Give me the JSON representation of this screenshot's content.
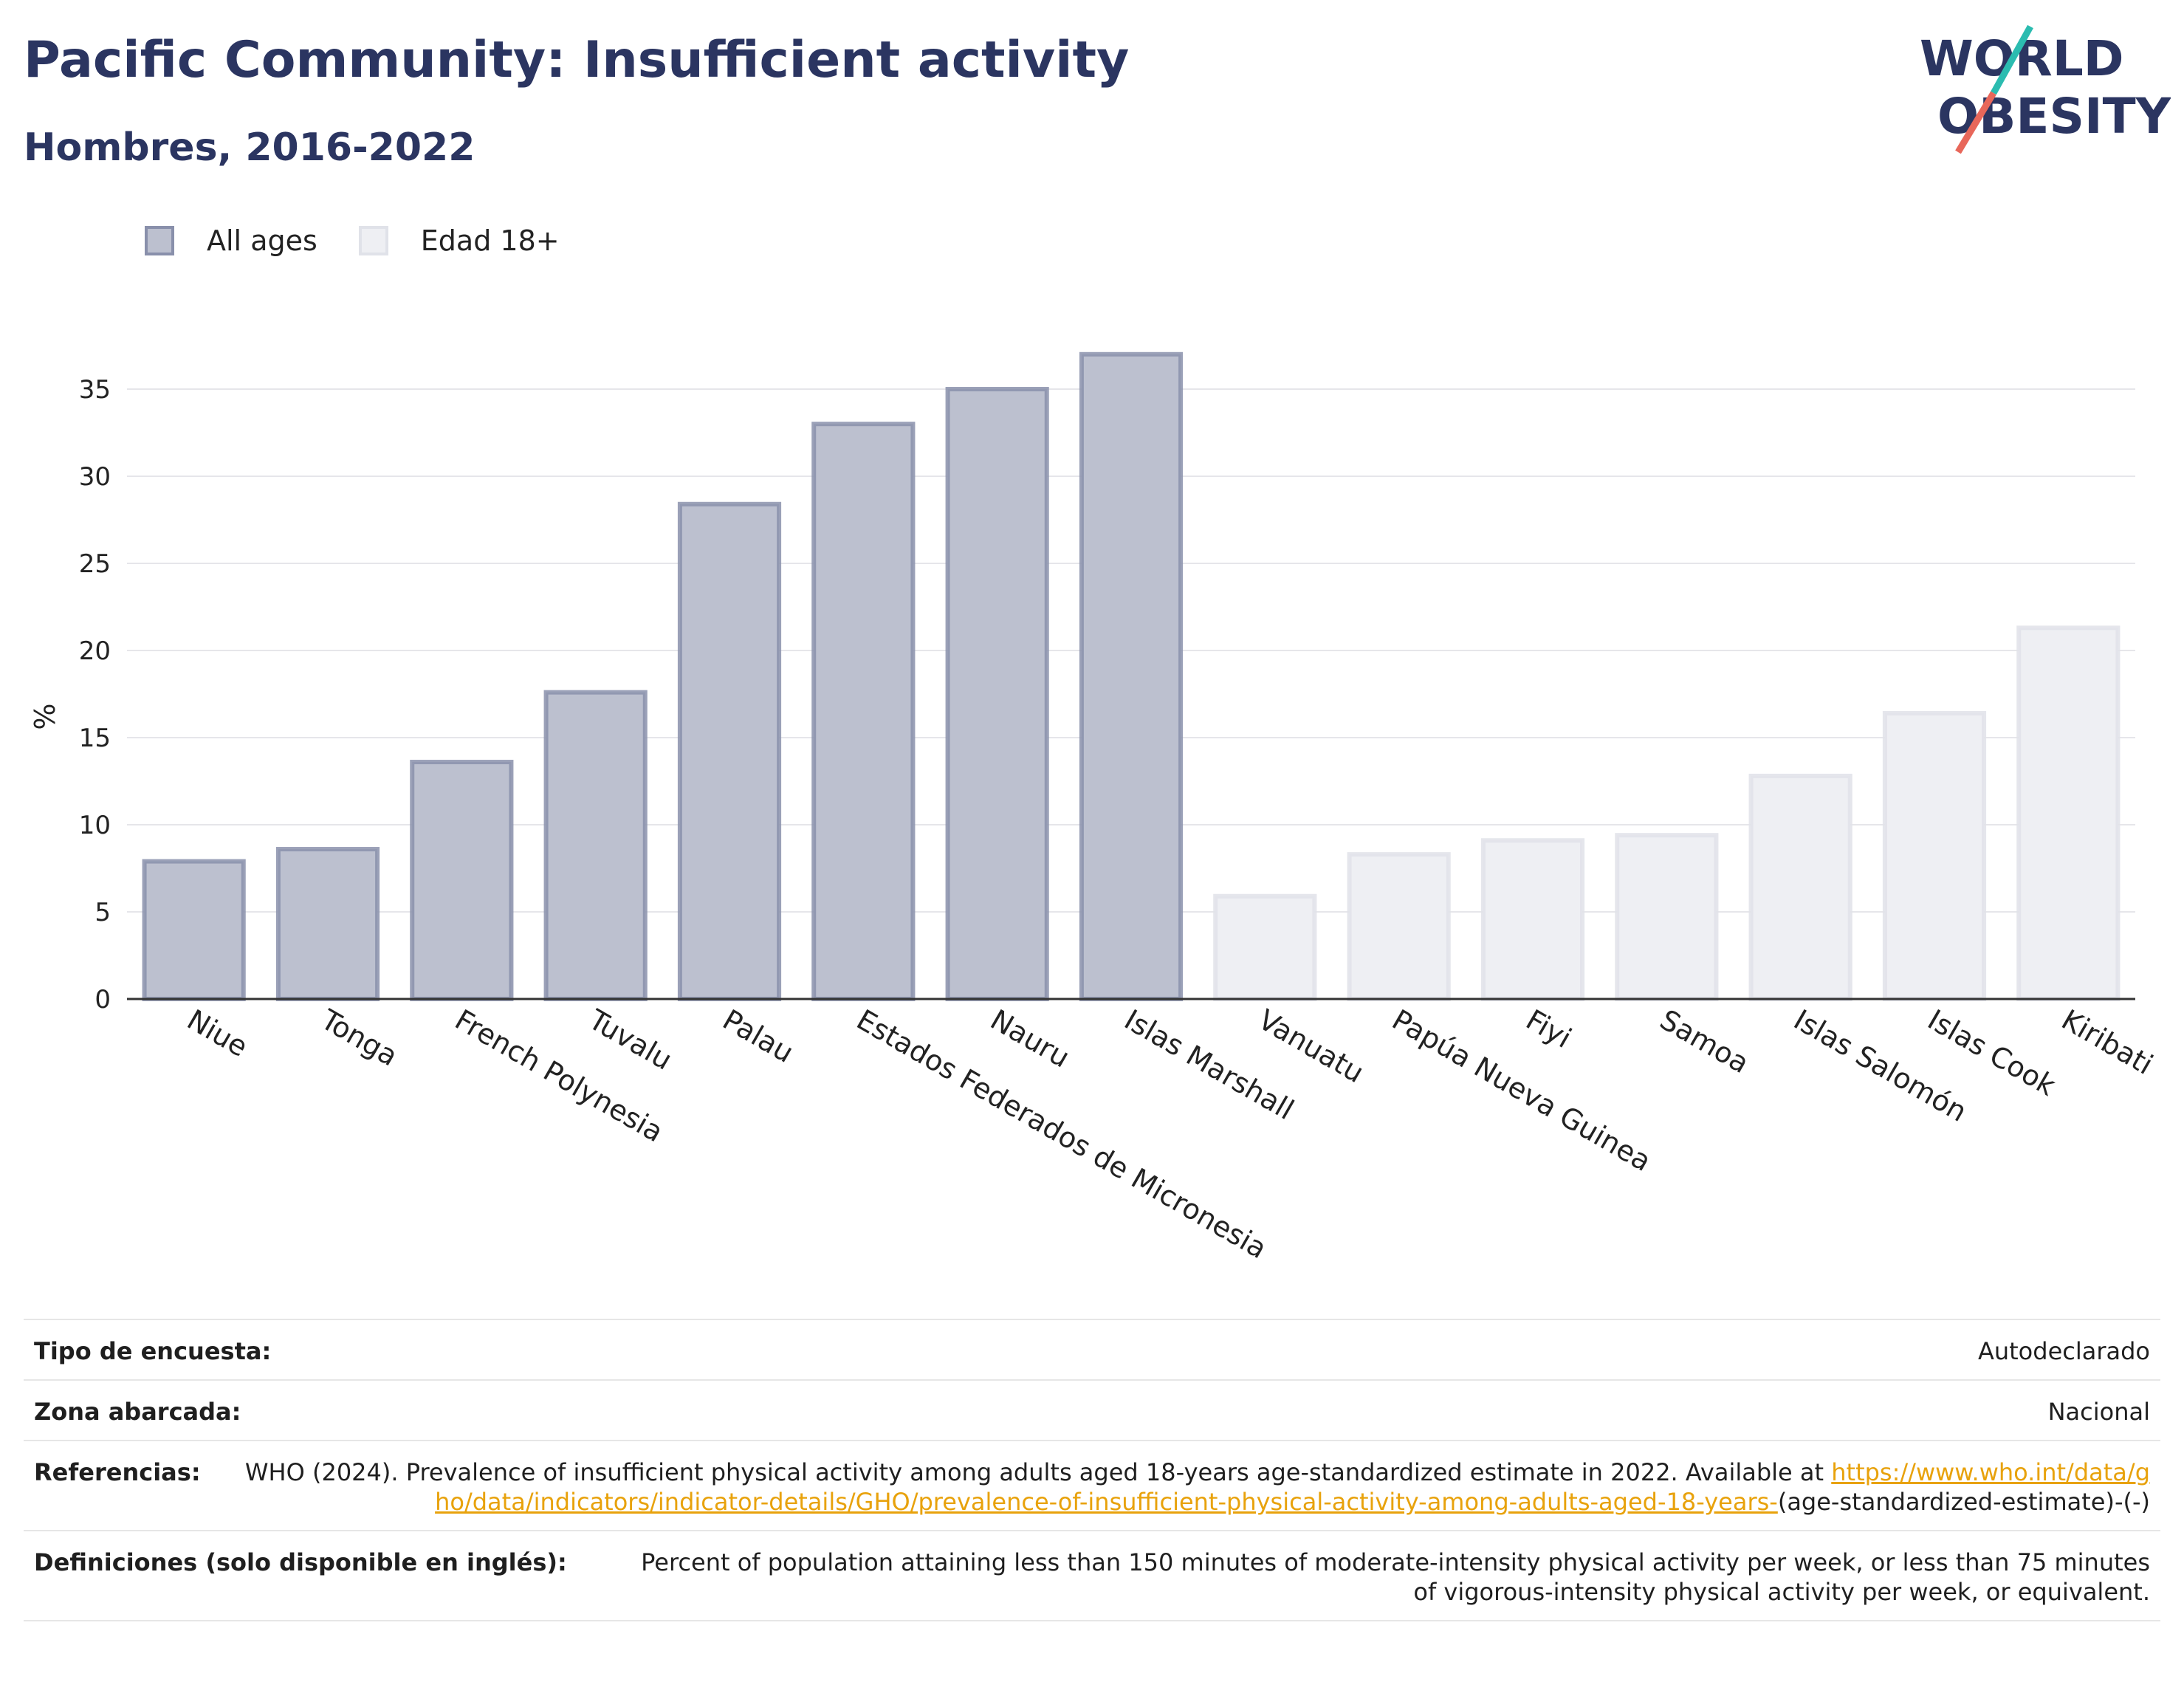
{
  "title": "Pacific Community: Insufficient activity",
  "subtitle": "Hombres, 2016-2022",
  "logo": {
    "line1": "WORLD",
    "line2": "OBESITY",
    "accent_colors": [
      "#2bbcb0",
      "#e8675a"
    ]
  },
  "legend": [
    {
      "label": "All ages",
      "fill": "#bcc0cf",
      "stroke": "#8990ab"
    },
    {
      "label": "Edad 18+",
      "fill": "#eeeff3",
      "stroke": "#e0e2e9"
    }
  ],
  "chart_data": {
    "type": "bar",
    "ylabel": "%",
    "xlabel": "",
    "ylim": [
      0,
      37.5
    ],
    "yticks": [
      0,
      5,
      10,
      15,
      20,
      25,
      30,
      35
    ],
    "grid": true,
    "legend_position": "top-left",
    "categories": [
      "Niue",
      "Tonga",
      "French Polynesia",
      "Tuvalu",
      "Palau",
      "Estados Federados de Micronesia",
      "Nauru",
      "Islas Marshall",
      "Vanuatu",
      "Papúa Nueva Guinea",
      "Fiyi",
      "Samoa",
      "Islas Salomón",
      "Islas Cook",
      "Kiribati"
    ],
    "series": [
      {
        "name": "All ages",
        "values": [
          7.9,
          8.6,
          13.6,
          17.6,
          28.4,
          33.0,
          35.0,
          37.0,
          null,
          null,
          null,
          null,
          null,
          null,
          null
        ]
      },
      {
        "name": "Edad 18+",
        "values": [
          null,
          null,
          null,
          null,
          null,
          null,
          null,
          null,
          5.9,
          8.3,
          9.1,
          9.4,
          12.8,
          16.4,
          21.3
        ]
      }
    ]
  },
  "meta": [
    {
      "label": "Tipo de encuesta:",
      "value": "Autodeclarado"
    },
    {
      "label": "Zona abarcada:",
      "value": "Nacional"
    },
    {
      "label": "Referencias:",
      "value_prefix": "WHO (2024). Prevalence of insufficient physical activity among adults aged 18-years age-standardized estimate in 2022. Available at",
      "link": "https://www.who.int/data/gho/data/indicators/indicator-details/GHO/prevalence-of-insufficient-physical-activity-among-adults-aged-18-years-",
      "value_suffix": "(age-standardized-estimate)-(-)"
    },
    {
      "label": "Definiciones (solo disponible en inglés):",
      "value": "Percent of population attaining less than 150 minutes of moderate-intensity physical activity per week, or less than 75 minutes of vigorous-intensity physical activity per week, or equivalent."
    }
  ]
}
